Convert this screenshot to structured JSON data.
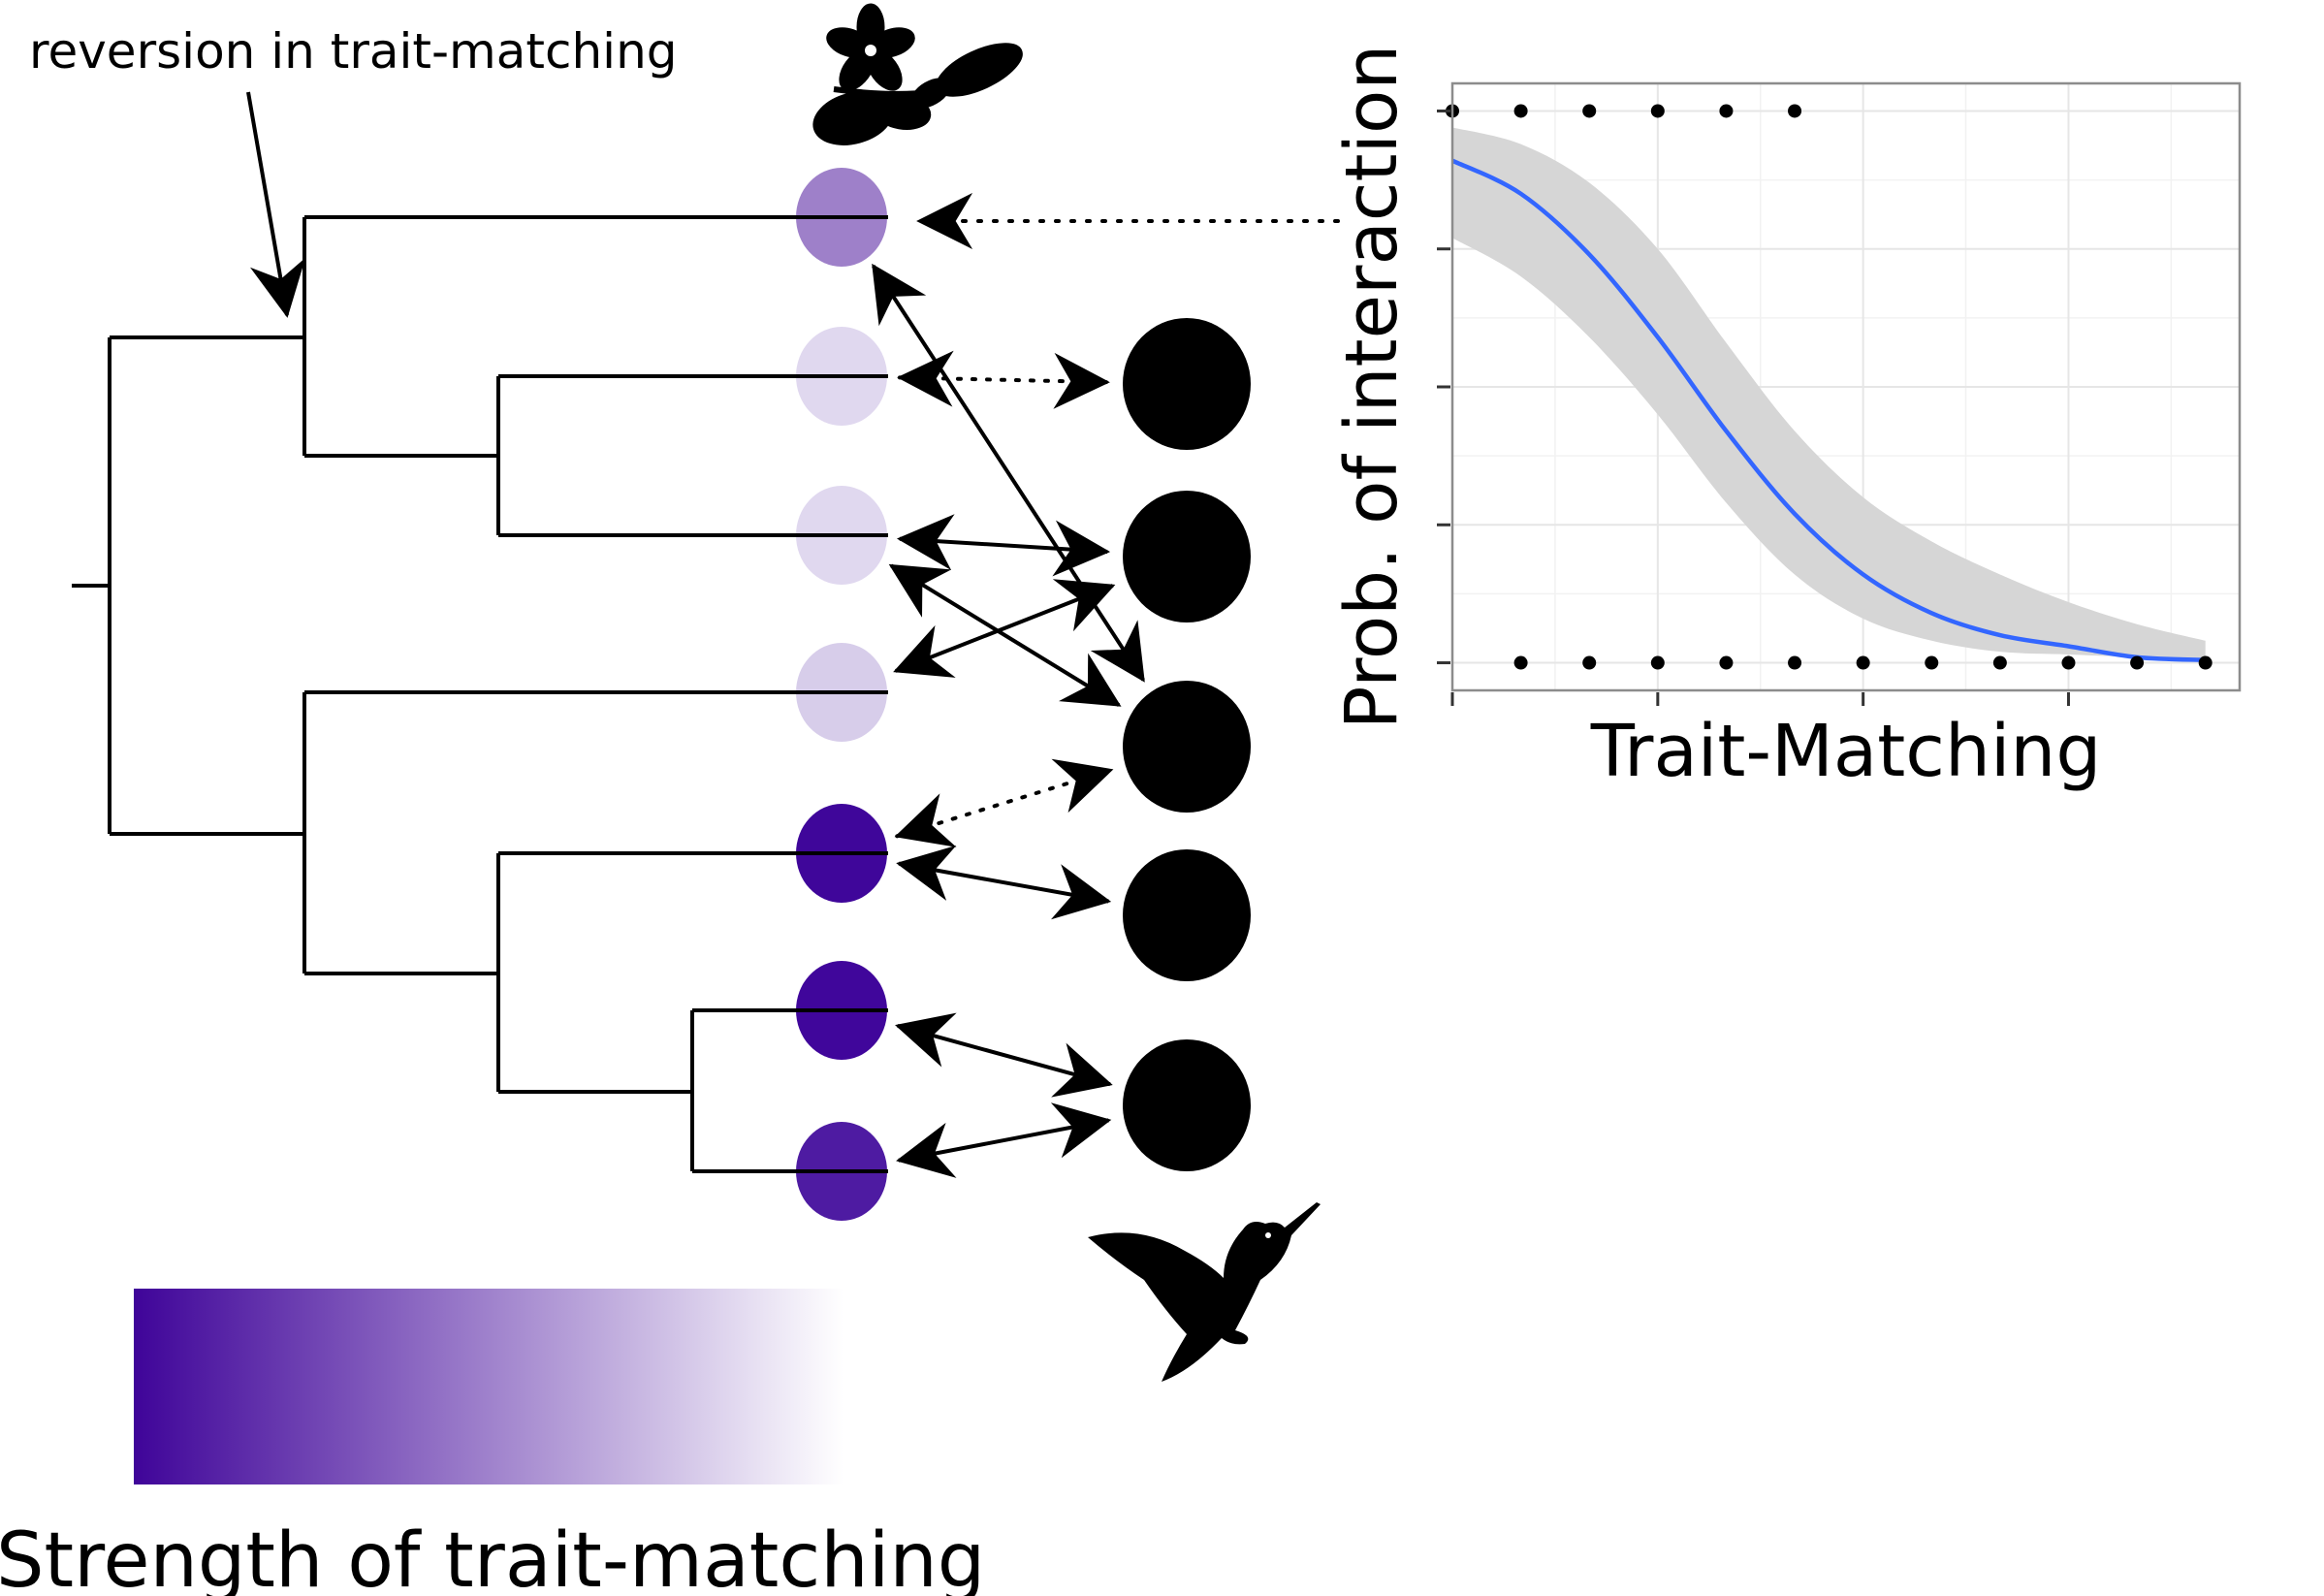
{
  "figure": {
    "annotation": "reversion in trait-matching",
    "legend_title": "Strength of trait-matching",
    "gradient": {
      "start_color": "#3f0499",
      "end_color": "#ffffff"
    }
  },
  "plant_tips": [
    {
      "id": "p1",
      "color": "#9e80c9"
    },
    {
      "id": "p2",
      "color": "#e0d8ef"
    },
    {
      "id": "p3",
      "color": "#e0d8ef"
    },
    {
      "id": "p4",
      "color": "#d7cdea"
    },
    {
      "id": "p5",
      "color": "#3f069a"
    },
    {
      "id": "p6",
      "color": "#40069b"
    },
    {
      "id": "p7",
      "color": "#4e1ba2"
    }
  ],
  "pollinators": [
    "h1",
    "h2",
    "h3",
    "h4",
    "h5"
  ],
  "interactions": [
    {
      "plant": "p2",
      "pollinator": "h1",
      "style": "dotted"
    },
    {
      "plant": "p1",
      "pollinator": "h3",
      "style": "solid"
    },
    {
      "plant": "p3",
      "pollinator": "h2",
      "style": "solid"
    },
    {
      "plant": "p3",
      "pollinator": "h3",
      "style": "solid"
    },
    {
      "plant": "p4",
      "pollinator": "h2",
      "style": "solid"
    },
    {
      "plant": "p5",
      "pollinator": "h3",
      "style": "dotted"
    },
    {
      "plant": "p5",
      "pollinator": "h4",
      "style": "solid"
    },
    {
      "plant": "p6",
      "pollinator": "h5",
      "style": "solid"
    },
    {
      "plant": "p7",
      "pollinator": "h5",
      "style": "solid"
    }
  ],
  "icons": {
    "plant": "plant-branch-silhouette-icon",
    "pollinator": "hummingbird-silhouette-icon"
  },
  "chart_data": {
    "type": "line",
    "title": "",
    "xlabel": "Trait-Matching",
    "ylabel": "Prob. of interaction",
    "xlim": [
      0,
      1.15
    ],
    "ylim": [
      -0.05,
      1.05
    ],
    "grid": true,
    "curve_color": "#3366ff",
    "band_color": "#d6d6d6",
    "series": [
      {
        "type": "line",
        "x": [
          0,
          0.1,
          0.2,
          0.3,
          0.4,
          0.5,
          0.6,
          0.7,
          0.8,
          0.9,
          1.0,
          1.1
        ],
        "y": [
          0.91,
          0.85,
          0.74,
          0.59,
          0.42,
          0.27,
          0.16,
          0.09,
          0.05,
          0.03,
          0.01,
          0.005
        ]
      },
      {
        "type": "ribbon",
        "x": [
          0,
          0.1,
          0.2,
          0.3,
          0.4,
          0.5,
          0.6,
          0.7,
          0.8,
          0.9,
          1.0,
          1.1
        ],
        "lower": [
          0.77,
          0.7,
          0.59,
          0.45,
          0.29,
          0.16,
          0.08,
          0.04,
          0.02,
          0.015,
          0.01,
          0.005
        ],
        "upper": [
          0.97,
          0.94,
          0.87,
          0.75,
          0.58,
          0.42,
          0.3,
          0.22,
          0.16,
          0.11,
          0.07,
          0.04
        ]
      },
      {
        "type": "scatter",
        "x": [
          0,
          0.1,
          0.2,
          0.3,
          0.4,
          0.5
        ],
        "y": [
          1,
          1,
          1,
          1,
          1,
          1
        ]
      },
      {
        "type": "scatter",
        "x": [
          0.1,
          0.2,
          0.3,
          0.4,
          0.5,
          0.6,
          0.7,
          0.8,
          0.9,
          1.0,
          1.1
        ],
        "y": [
          0,
          0,
          0,
          0,
          0,
          0,
          0,
          0,
          0,
          0,
          0
        ]
      }
    ]
  }
}
